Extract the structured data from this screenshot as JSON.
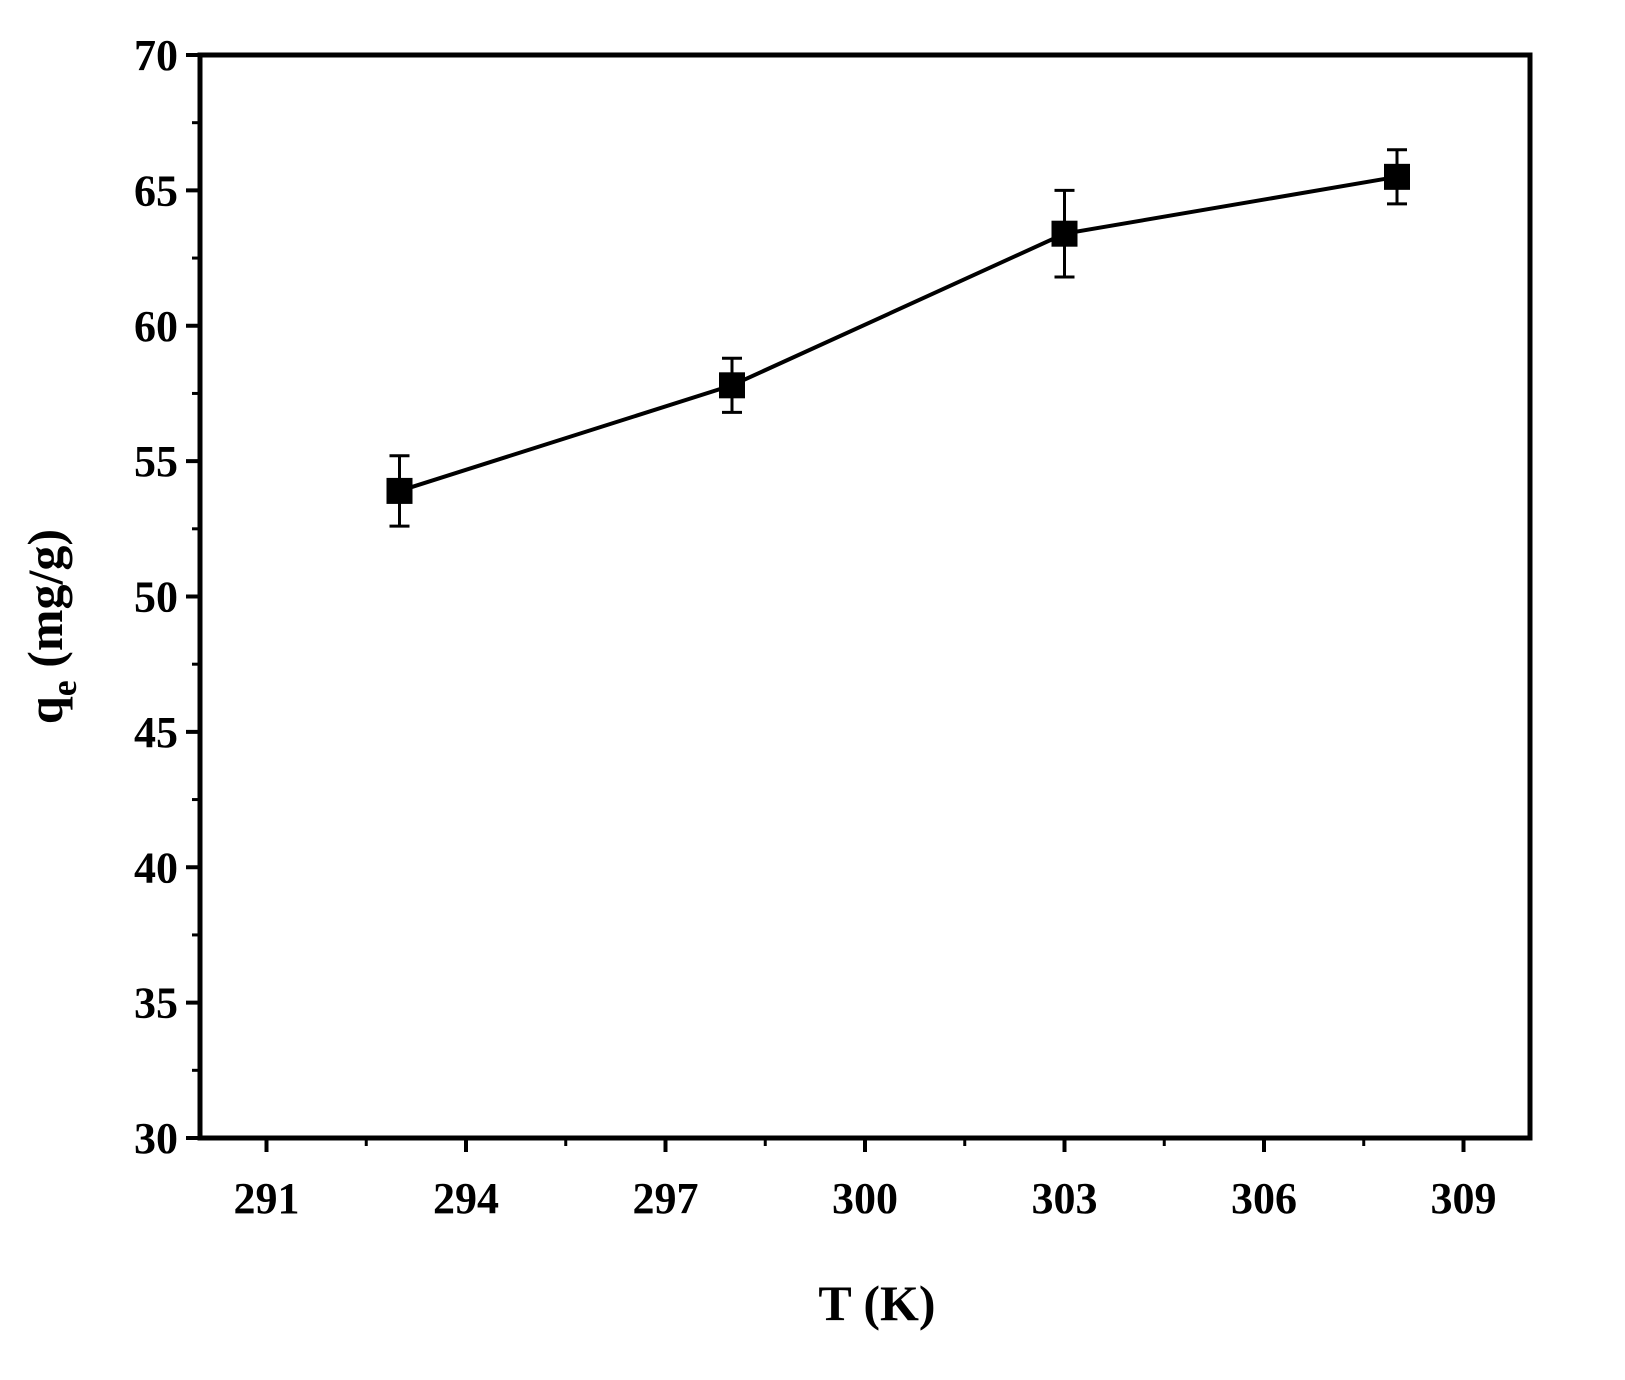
{
  "chart_data": {
    "type": "line",
    "xlabel": "T (K)",
    "ylabel": {
      "main": "q",
      "subscript": "e",
      "unit": " (mg/g)"
    },
    "xlim": [
      290,
      310
    ],
    "ylim": [
      30,
      70
    ],
    "x_ticks": [
      291,
      294,
      297,
      300,
      303,
      306,
      309
    ],
    "x_minor_ticks": [
      292.5,
      295.5,
      298.5,
      301.5,
      304.5,
      307.5
    ],
    "y_ticks": [
      30,
      35,
      40,
      45,
      50,
      55,
      60,
      65,
      70
    ],
    "y_minor_ticks": [
      32.5,
      37.5,
      42.5,
      47.5,
      52.5,
      57.5,
      62.5,
      67.5
    ],
    "grid": false,
    "series": [
      {
        "marker": "square",
        "color": "#000000",
        "x": [
          293,
          298,
          303,
          308
        ],
        "y": [
          53.9,
          57.8,
          63.4,
          65.5
        ],
        "error": [
          1.3,
          1.0,
          1.6,
          1.0
        ]
      }
    ]
  }
}
